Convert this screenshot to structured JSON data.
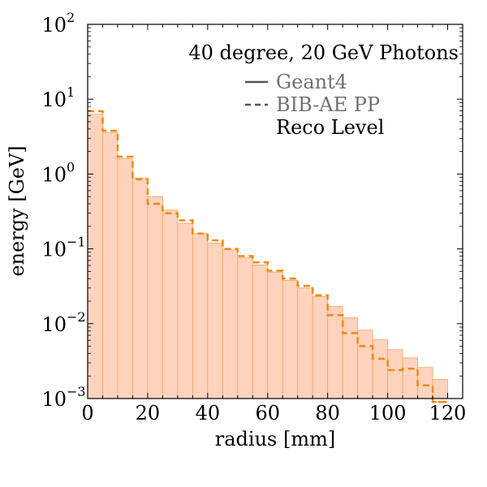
{
  "chart_data": {
    "type": "bar",
    "title": "40 degree, 20 GeV Photons",
    "xlabel": "radius [mm]",
    "ylabel": "energy [GeV]",
    "xlim": [
      0,
      125
    ],
    "ylim": [
      0.001,
      100
    ],
    "yscale": "log",
    "x_ticks": [
      0,
      20,
      40,
      60,
      80,
      100,
      120
    ],
    "x_tick_labels": [
      "0",
      "20",
      "40",
      "60",
      "80",
      "100",
      "120"
    ],
    "y_ticks": [
      0.001,
      0.01,
      0.1,
      1,
      10,
      100
    ],
    "y_tick_bases": [
      "10",
      "10",
      "10",
      "10",
      "10",
      "10"
    ],
    "y_tick_exponents": [
      "−3",
      "−2",
      "−1",
      "0",
      "1",
      "2"
    ],
    "bin_edges": [
      0,
      5,
      10,
      15,
      20,
      25,
      30,
      35,
      40,
      45,
      50,
      55,
      60,
      65,
      70,
      75,
      80,
      85,
      90,
      95,
      100,
      105,
      110,
      115,
      120
    ],
    "series": [
      {
        "name": "Geant4",
        "style": "solid-filled",
        "values": [
          6.3,
          3.6,
          1.6,
          0.88,
          0.5,
          0.33,
          0.22,
          0.16,
          0.12,
          0.097,
          0.076,
          0.061,
          0.049,
          0.038,
          0.03,
          0.023,
          0.017,
          0.012,
          0.0082,
          0.0061,
          0.0045,
          0.0035,
          0.0026,
          0.0018
        ]
      },
      {
        "name": "BIB-AE PP",
        "style": "dashed",
        "values": [
          6.9,
          3.8,
          1.7,
          0.85,
          0.4,
          0.3,
          0.24,
          0.16,
          0.13,
          0.1,
          0.08,
          0.066,
          0.051,
          0.04,
          0.032,
          0.024,
          0.013,
          0.0075,
          0.005,
          0.0034,
          0.0024,
          0.0025,
          0.0015,
          0.0009
        ]
      }
    ],
    "legend": {
      "position": "top-right",
      "entries": [
        "Geant4",
        "BIB-AE PP"
      ],
      "note": "Reco Level"
    },
    "colors": {
      "fill": "#fdd3bd",
      "fill_edge": "#f5a35b",
      "dashed_line": "#f08a0f",
      "legend_text": "#707070",
      "legend_line": "#555555"
    }
  }
}
